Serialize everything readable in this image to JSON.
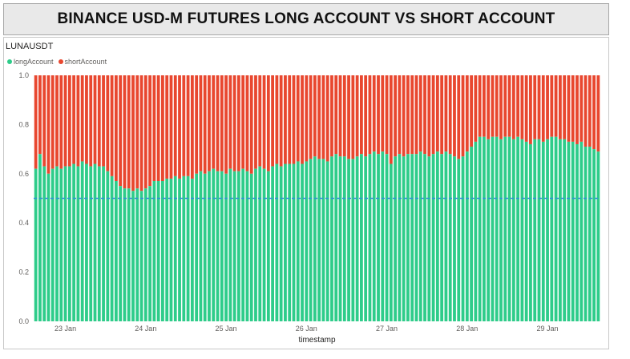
{
  "title": "BINANCE USD-M FUTURES LONG ACCOUNT VS SHORT ACCOUNT",
  "symbol": "LUNAUSDT",
  "colors": {
    "long": "#2ecc8a",
    "short": "#e8472f",
    "reference": "#2f8fd6"
  },
  "chart_data": {
    "type": "bar",
    "stacked": true,
    "title": "",
    "xlabel": "timestamp",
    "ylabel": "",
    "ylim": [
      0,
      1.0
    ],
    "yticks": [
      "0.0",
      "0.2",
      "0.4",
      "0.6",
      "0.8",
      "1.0"
    ],
    "xticks": [
      {
        "label": "23 Jan",
        "index": 7
      },
      {
        "label": "24 Jan",
        "index": 26
      },
      {
        "label": "25 Jan",
        "index": 45
      },
      {
        "label": "26 Jan",
        "index": 64
      },
      {
        "label": "27 Jan",
        "index": 83
      },
      {
        "label": "28 Jan",
        "index": 102
      },
      {
        "label": "29 Jan",
        "index": 121
      }
    ],
    "reference_line": 0.5,
    "legend_position": "top-left",
    "series": [
      {
        "name": "longAccount",
        "values": [
          0.62,
          0.68,
          0.63,
          0.6,
          0.62,
          0.63,
          0.62,
          0.63,
          0.63,
          0.64,
          0.63,
          0.65,
          0.64,
          0.63,
          0.64,
          0.63,
          0.63,
          0.61,
          0.59,
          0.57,
          0.55,
          0.54,
          0.54,
          0.53,
          0.54,
          0.53,
          0.54,
          0.55,
          0.57,
          0.57,
          0.57,
          0.58,
          0.58,
          0.59,
          0.58,
          0.59,
          0.59,
          0.58,
          0.6,
          0.61,
          0.6,
          0.61,
          0.62,
          0.61,
          0.61,
          0.6,
          0.62,
          0.61,
          0.61,
          0.62,
          0.61,
          0.6,
          0.62,
          0.63,
          0.62,
          0.61,
          0.63,
          0.64,
          0.63,
          0.64,
          0.64,
          0.64,
          0.65,
          0.64,
          0.65,
          0.66,
          0.67,
          0.66,
          0.66,
          0.65,
          0.67,
          0.68,
          0.67,
          0.67,
          0.66,
          0.66,
          0.67,
          0.68,
          0.67,
          0.68,
          0.69,
          0.68,
          0.69,
          0.68,
          0.64,
          0.67,
          0.68,
          0.67,
          0.68,
          0.68,
          0.68,
          0.69,
          0.68,
          0.67,
          0.68,
          0.69,
          0.68,
          0.69,
          0.68,
          0.67,
          0.66,
          0.67,
          0.69,
          0.71,
          0.73,
          0.75,
          0.75,
          0.74,
          0.75,
          0.75,
          0.74,
          0.75,
          0.75,
          0.74,
          0.75,
          0.74,
          0.73,
          0.72,
          0.74,
          0.74,
          0.73,
          0.74,
          0.75,
          0.75,
          0.74,
          0.74,
          0.73,
          0.73,
          0.72,
          0.73,
          0.71,
          0.71,
          0.7,
          0.69
        ]
      },
      {
        "name": "shortAccount",
        "values": [
          0.38,
          0.32,
          0.37,
          0.4,
          0.38,
          0.37,
          0.38,
          0.37,
          0.37,
          0.36,
          0.37,
          0.35,
          0.36,
          0.37,
          0.36,
          0.37,
          0.37,
          0.39,
          0.41,
          0.43,
          0.45,
          0.46,
          0.46,
          0.47,
          0.46,
          0.47,
          0.46,
          0.45,
          0.43,
          0.43,
          0.43,
          0.42,
          0.42,
          0.41,
          0.42,
          0.41,
          0.41,
          0.42,
          0.4,
          0.39,
          0.4,
          0.39,
          0.38,
          0.39,
          0.39,
          0.4,
          0.38,
          0.39,
          0.39,
          0.38,
          0.39,
          0.4,
          0.38,
          0.37,
          0.38,
          0.39,
          0.37,
          0.36,
          0.37,
          0.36,
          0.36,
          0.36,
          0.35,
          0.36,
          0.35,
          0.34,
          0.33,
          0.34,
          0.34,
          0.35,
          0.33,
          0.32,
          0.33,
          0.33,
          0.34,
          0.34,
          0.33,
          0.32,
          0.33,
          0.32,
          0.31,
          0.32,
          0.31,
          0.32,
          0.36,
          0.33,
          0.32,
          0.33,
          0.32,
          0.32,
          0.32,
          0.31,
          0.32,
          0.33,
          0.32,
          0.31,
          0.32,
          0.31,
          0.32,
          0.33,
          0.34,
          0.33,
          0.31,
          0.29,
          0.27,
          0.25,
          0.25,
          0.26,
          0.25,
          0.25,
          0.26,
          0.25,
          0.25,
          0.26,
          0.25,
          0.26,
          0.27,
          0.28,
          0.26,
          0.26,
          0.27,
          0.26,
          0.25,
          0.25,
          0.26,
          0.26,
          0.27,
          0.27,
          0.28,
          0.27,
          0.29,
          0.29,
          0.3,
          0.31
        ]
      }
    ]
  }
}
